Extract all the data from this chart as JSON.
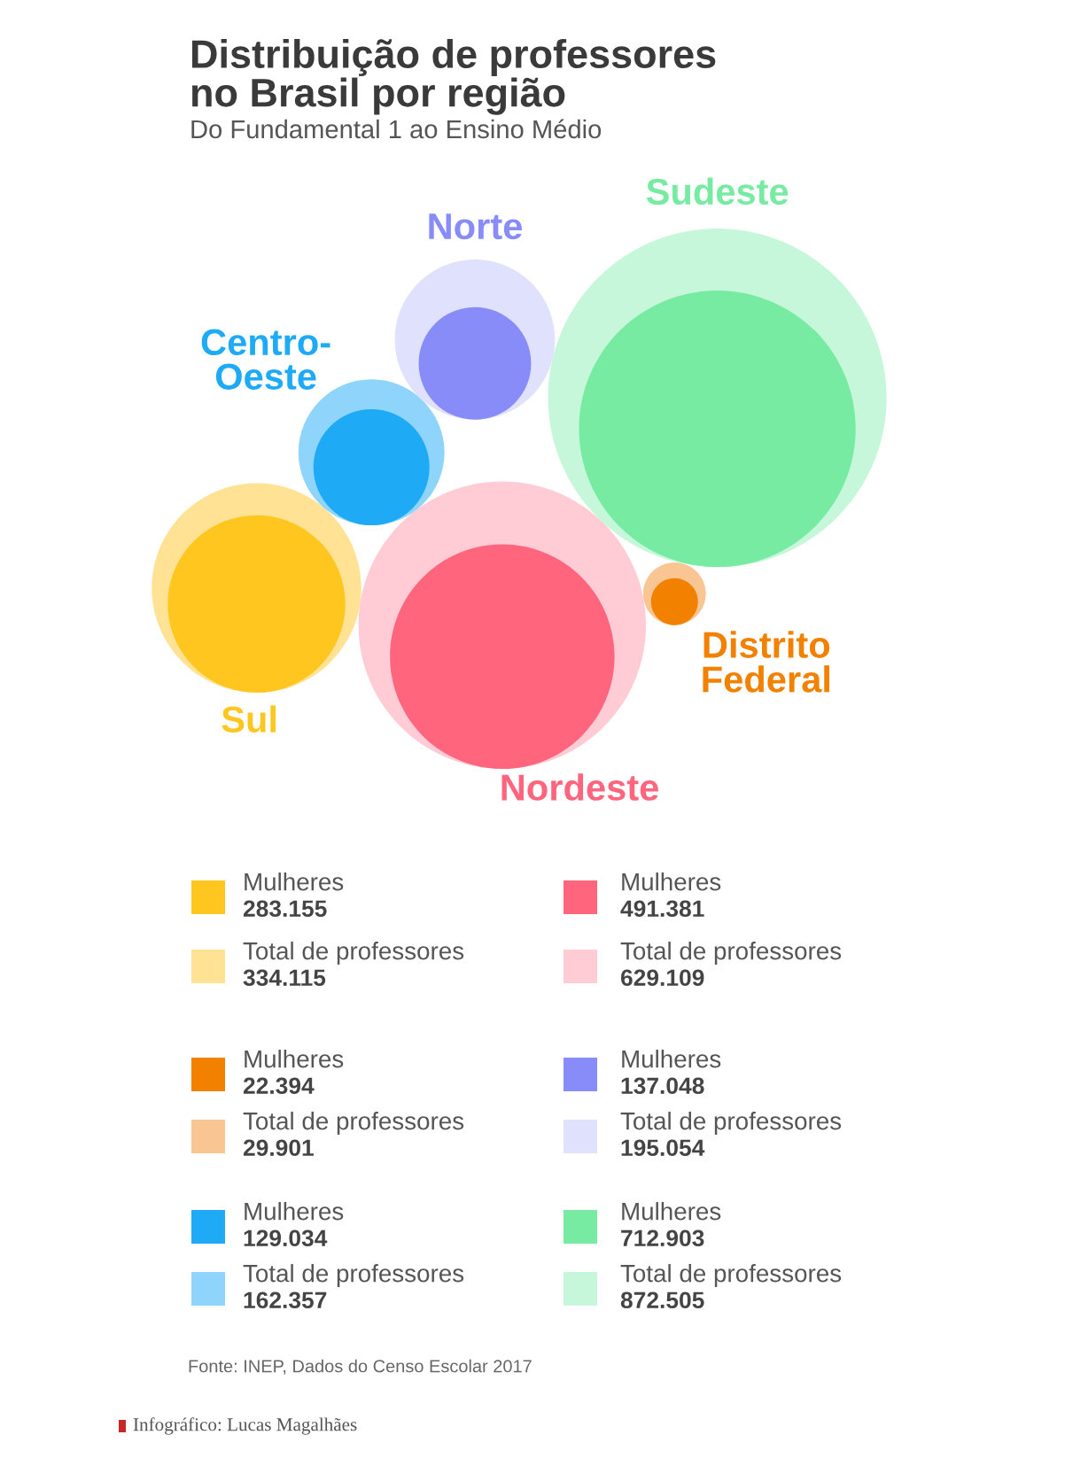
{
  "chart_data": {
    "type": "other",
    "title": "Distribuição de professores\nno Brasil por região",
    "subtitle": "Do Fundamental 1 ao Ensino Médio",
    "categories": [
      "Mulheres",
      "Total de professores"
    ],
    "series": [
      {
        "name": "Sul",
        "colors": [
          "#ffc61f",
          "#ffe293"
        ],
        "values": [
          283155,
          334115
        ],
        "value_labels": [
          "283.155",
          "334.115"
        ]
      },
      {
        "name": "Nordeste",
        "colors": [
          "#ff657c",
          "#ffccd5"
        ],
        "values": [
          491381,
          629109
        ],
        "value_labels": [
          "491.381",
          "629.109"
        ]
      },
      {
        "name": "Distrito\nFederal",
        "colors": [
          "#f28100",
          "#f9c592"
        ],
        "values": [
          22394,
          29901
        ],
        "value_labels": [
          "22.394",
          "29.901"
        ]
      },
      {
        "name": "Norte",
        "colors": [
          "#878cf8",
          "#e0e1fc"
        ],
        "values": [
          137048,
          195054
        ],
        "value_labels": [
          "137.048",
          "195.054"
        ]
      },
      {
        "name": "Centro-\nOeste",
        "colors": [
          "#1faaf5",
          "#8ed4fb"
        ],
        "values": [
          129034,
          162357
        ],
        "value_labels": [
          "129.034",
          "162.357"
        ]
      },
      {
        "name": "Sudeste",
        "colors": [
          "#77eba1",
          "#c7f7da"
        ],
        "values": [
          712903,
          872505
        ],
        "value_labels": [
          "712.903",
          "872.505"
        ]
      }
    ],
    "legend": "bottom",
    "annotations": [
      "Fonte: INEP, Dados do Censo Escolar 2017",
      "Infográfico: Lucas Magalhães"
    ]
  }
}
